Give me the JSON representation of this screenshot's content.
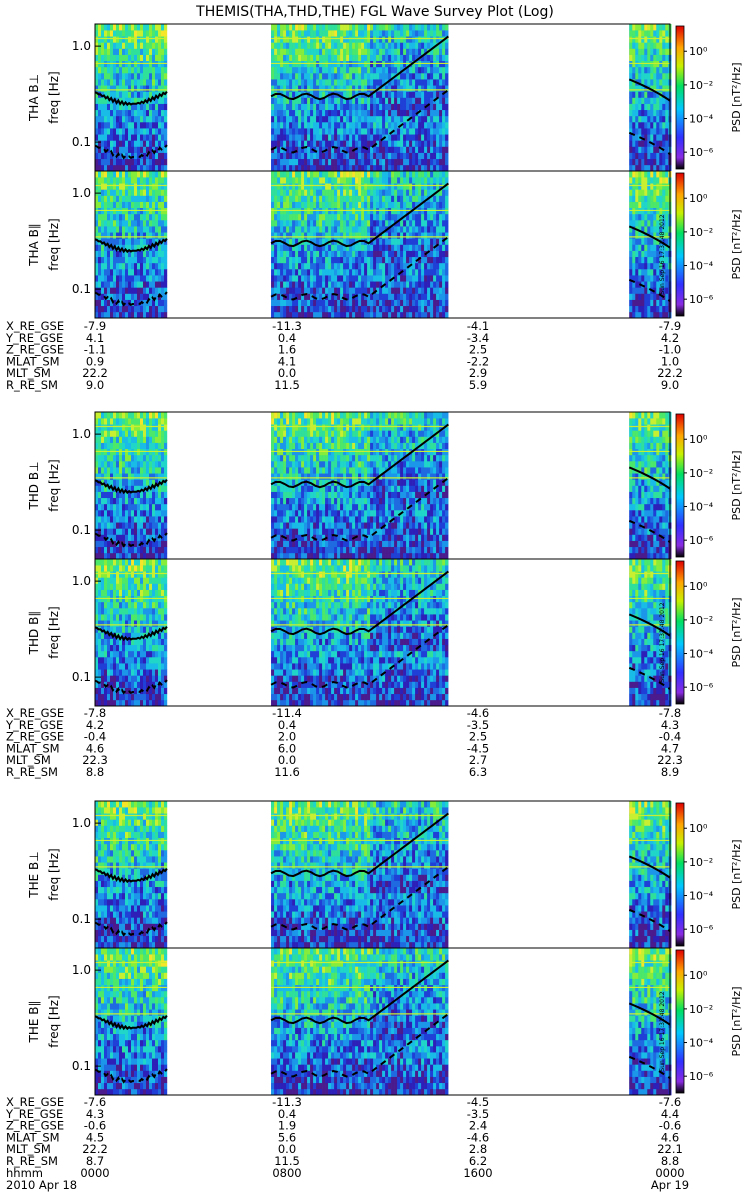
{
  "title": "THEMIS(THA,THD,THE) FGL Wave Survey Plot (Log)",
  "colorbar": {
    "label": "PSD [nT²/Hz]",
    "ticks": [
      "10⁰",
      "10⁻²",
      "10⁻⁴",
      "10⁻⁶"
    ],
    "ticks_log10": [
      0,
      -2,
      -4,
      -6
    ],
    "range_log10": [
      -7,
      1.5
    ],
    "stamp": "Sun Sep 16 17:31:48 2012"
  },
  "time_axis": {
    "labels": [
      {
        "hhmm": "0000",
        "date": "2010   Apr 18"
      },
      {
        "hhmm": "0800",
        "date": ""
      },
      {
        "hhmm": "1600",
        "date": ""
      },
      {
        "hhmm": "0000",
        "date": "Apr 19"
      }
    ],
    "row_label": "hhmm",
    "range_hours": [
      0,
      24
    ]
  },
  "panels": [
    {
      "probe": "THA",
      "label": "THA B⊥",
      "ylabel": "freq [Hz]"
    },
    {
      "probe": "THA",
      "label": "THA B∥",
      "ylabel": "freq [Hz]"
    },
    {
      "probe": "THD",
      "label": "THD B⊥",
      "ylabel": "freq [Hz]"
    },
    {
      "probe": "THD",
      "label": "THD B∥",
      "ylabel": "freq [Hz]"
    },
    {
      "probe": "THE",
      "label": "THE B⊥",
      "ylabel": "freq [Hz]"
    },
    {
      "probe": "THE",
      "label": "THE B∥",
      "ylabel": "freq [Hz]"
    }
  ],
  "ephemeris": [
    {
      "probe": "THA",
      "rows": [
        {
          "name": "X_RE_GSE",
          "values": [
            "-7.9",
            "-11.3",
            "-4.1",
            "-7.9"
          ]
        },
        {
          "name": "Y_RE_GSE",
          "values": [
            "4.1",
            "0.4",
            "-3.4",
            "4.2"
          ]
        },
        {
          "name": "Z_RE_GSE",
          "values": [
            "-1.1",
            "1.6",
            "2.5",
            "-1.0"
          ]
        },
        {
          "name": "MLAT_SM",
          "values": [
            "0.9",
            "4.1",
            "-2.2",
            "1.0"
          ]
        },
        {
          "name": "MLT_SM",
          "values": [
            "22.2",
            "0.0",
            "2.9",
            "22.2"
          ]
        },
        {
          "name": "R_RE_SM",
          "values": [
            "9.0",
            "11.5",
            "5.9",
            "9.0"
          ]
        }
      ]
    },
    {
      "probe": "THD",
      "rows": [
        {
          "name": "X_RE_GSE",
          "values": [
            "-7.8",
            "-11.4",
            "-4.6",
            "-7.8"
          ]
        },
        {
          "name": "Y_RE_GSE",
          "values": [
            "4.2",
            "0.4",
            "-3.5",
            "4.3"
          ]
        },
        {
          "name": "Z_RE_GSE",
          "values": [
            "-0.4",
            "2.0",
            "2.5",
            "-0.4"
          ]
        },
        {
          "name": "MLAT_SM",
          "values": [
            "4.6",
            "6.0",
            "-4.5",
            "4.7"
          ]
        },
        {
          "name": "MLT_SM",
          "values": [
            "22.3",
            "0.0",
            "2.7",
            "22.3"
          ]
        },
        {
          "name": "R_RE_SM",
          "values": [
            "8.8",
            "11.6",
            "6.3",
            "8.9"
          ]
        }
      ]
    },
    {
      "probe": "THE",
      "rows": [
        {
          "name": "X_RE_GSE",
          "values": [
            "-7.6",
            "-11.3",
            "-4.5",
            "-7.6"
          ]
        },
        {
          "name": "Y_RE_GSE",
          "values": [
            "4.3",
            "0.4",
            "-3.5",
            "4.4"
          ]
        },
        {
          "name": "Z_RE_GSE",
          "values": [
            "-0.6",
            "1.9",
            "2.4",
            "-0.6"
          ]
        },
        {
          "name": "MLAT_SM",
          "values": [
            "4.5",
            "5.6",
            "-4.6",
            "4.6"
          ]
        },
        {
          "name": "MLT_SM",
          "values": [
            "22.2",
            "0.0",
            "2.8",
            "22.1"
          ]
        },
        {
          "name": "R_RE_SM",
          "values": [
            "8.7",
            "11.5",
            "6.2",
            "8.8"
          ]
        }
      ]
    }
  ],
  "chart_data": {
    "type": "heatmap",
    "title": "THEMIS(THA,THD,THE) FGL Wave Survey Plot (Log)",
    "xlabel": "",
    "ylabel": "freq [Hz]",
    "x_unit": "hours since 2010-04-18 00:00",
    "xlim": [
      0,
      24
    ],
    "ylim_hz": [
      0.05,
      1.7
    ],
    "y_scale": "log",
    "y_ticks": [
      0.1,
      1.0
    ],
    "y_tick_labels": [
      "0.1",
      "1.0"
    ],
    "z_label": "PSD [nT²/Hz]",
    "z_scale": "log",
    "data_intervals_hours": [
      [
        0,
        3.0
      ],
      [
        7.35,
        14.75
      ],
      [
        22.3,
        24
      ]
    ],
    "line_colors": {
      "curve": "#000000",
      "gap": "#ffffff"
    },
    "series": [
      {
        "name": "THA B⊥"
      },
      {
        "name": "THA B∥"
      },
      {
        "name": "THD B⊥"
      },
      {
        "name": "THD B∥"
      },
      {
        "name": "THE B⊥"
      },
      {
        "name": "THE B∥"
      }
    ]
  }
}
